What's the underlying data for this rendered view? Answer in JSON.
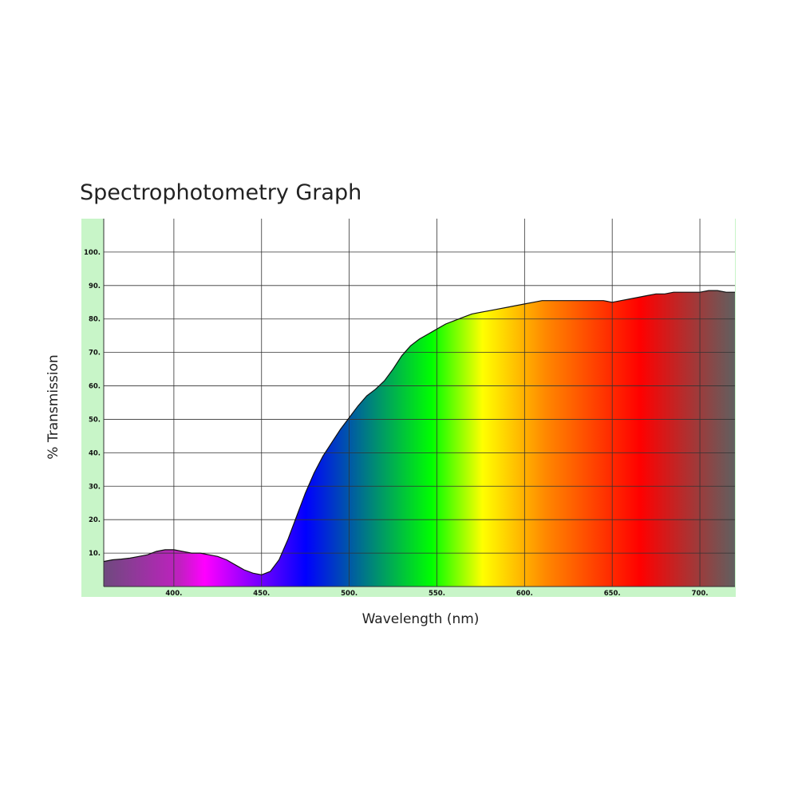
{
  "colors": {
    "frame_bg": "#c8f5c8",
    "grid": "#333333",
    "curve": "#111111",
    "spectrum": [
      "#6e4a7e",
      "#c020c0",
      "#ff00ff",
      "#0000ff",
      "#00ff00",
      "#ffff00",
      "#ff8800",
      "#ff0000",
      "#606060"
    ]
  },
  "chart_data": {
    "type": "area",
    "title": "Spectrophotometry Graph",
    "xlabel": "Wavelength (nm)",
    "ylabel": "% Transmission",
    "xlim": [
      360,
      720
    ],
    "ylim": [
      0,
      110
    ],
    "grid": true,
    "fill": "visible spectrum gradient",
    "x_ticks": [
      400,
      450,
      500,
      550,
      600,
      650,
      700
    ],
    "x_tick_labels": [
      "400.",
      "450.",
      "500.",
      "550.",
      "600.",
      "650.",
      "700."
    ],
    "y_ticks": [
      10,
      20,
      30,
      40,
      50,
      60,
      70,
      80,
      90,
      100
    ],
    "y_tick_labels": [
      "10.",
      "20.",
      "30.",
      "40.",
      "50.",
      "60.",
      "70.",
      "80.",
      "90.",
      "100."
    ],
    "series": [
      {
        "x": [
          360,
          365,
          370,
          375,
          380,
          385,
          390,
          395,
          400,
          405,
          410,
          415,
          420,
          425,
          430,
          435,
          440,
          445,
          450,
          455,
          460,
          465,
          470,
          475,
          480,
          485,
          490,
          495,
          500,
          505,
          510,
          515,
          520,
          525,
          530,
          535,
          540,
          545,
          550,
          555,
          560,
          565,
          570,
          575,
          580,
          585,
          590,
          595,
          600,
          605,
          610,
          615,
          620,
          625,
          630,
          635,
          640,
          645,
          650,
          655,
          660,
          665,
          670,
          675,
          680,
          685,
          690,
          695,
          700,
          705,
          710,
          715,
          720
        ],
        "values": [
          7.5,
          8,
          8.2,
          8.5,
          9,
          9.5,
          10.5,
          11,
          11,
          10.5,
          10,
          10,
          9.5,
          9,
          8,
          6.5,
          5,
          4,
          3.5,
          4.5,
          8,
          14,
          21,
          28,
          34,
          39,
          43,
          47,
          50.5,
          54,
          57,
          59,
          61.5,
          65,
          69,
          72,
          74,
          75.5,
          77,
          78.5,
          79.5,
          80.5,
          81.5,
          82,
          82.5,
          83,
          83.5,
          84,
          84.5,
          85,
          85.5,
          85.5,
          85.5,
          85.5,
          85.5,
          85.5,
          85.5,
          85.5,
          85,
          85.5,
          86,
          86.5,
          87,
          87.5,
          87.5,
          88,
          88,
          88,
          88,
          88.5,
          88.5,
          88,
          88
        ]
      }
    ]
  }
}
